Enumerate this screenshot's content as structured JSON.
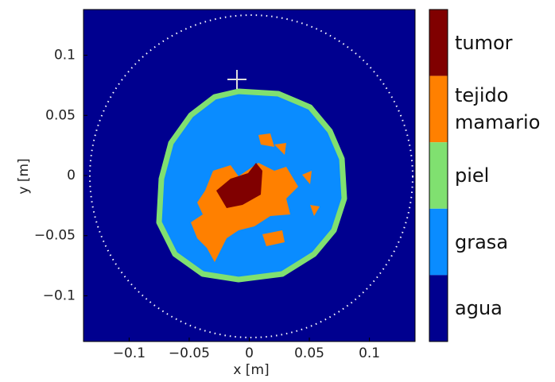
{
  "chart_data": {
    "type": "image-map",
    "x_label": "x [m]",
    "y_label": "y [m]",
    "xlim": [
      -0.138,
      0.138
    ],
    "ylim": [
      0.138,
      -0.138
    ],
    "xticks": [
      {
        "value": -0.1,
        "label": "−0.1"
      },
      {
        "value": -0.05,
        "label": "−0.05"
      },
      0,
      0.05,
      0.1
    ],
    "yticks": [
      {
        "value": -0.1,
        "label": "−0.1"
      },
      {
        "value": -0.05,
        "label": "−0.05"
      },
      0,
      0.05,
      0.1
    ],
    "colorbar": {
      "categories": [
        "tumor",
        "tejido mamario",
        "piel",
        "grasa",
        "agua"
      ],
      "colors": [
        "#800000",
        "#ff8000",
        "#80e070",
        "#0a8cff",
        "#00008f"
      ]
    }
  }
}
